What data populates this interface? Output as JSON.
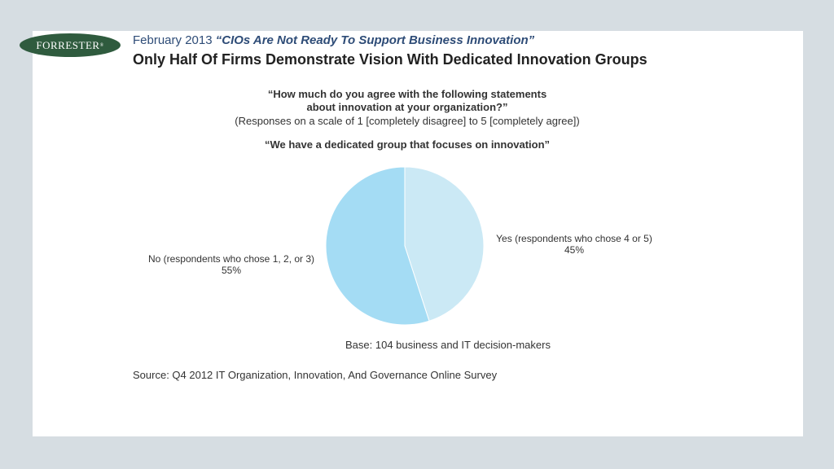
{
  "header": {
    "logo_text": "FORRESTER",
    "logo_mark": "®",
    "report_date": "February 2013",
    "report_title": "“CIOs Are Not Ready To Support Business Innovation”",
    "headline": "Only Half Of Firms Demonstrate Vision With Dedicated Innovation Groups"
  },
  "chart_data": {
    "type": "pie",
    "question_line1": "“How much do you agree with the following statements",
    "question_line2": "about innovation at your organization?”",
    "scale_note": "(Responses on a scale of 1 [completely disagree] to 5 [completely agree])",
    "statement": "“We have a dedicated group that focuses on innovation”",
    "slices": [
      {
        "label": "Yes (respondents who chose 4 or 5)",
        "value": 45,
        "value_label": "45%",
        "color": "#cbe9f5"
      },
      {
        "label": "No (respondents who chose 1, 2, or 3)",
        "value": 55,
        "value_label": "55%",
        "color": "#a4dcf4"
      }
    ],
    "base": "Base: 104 business and IT decision-makers",
    "source": "Source: Q4 2012 IT Organization, Innovation, And Governance Online Survey"
  }
}
